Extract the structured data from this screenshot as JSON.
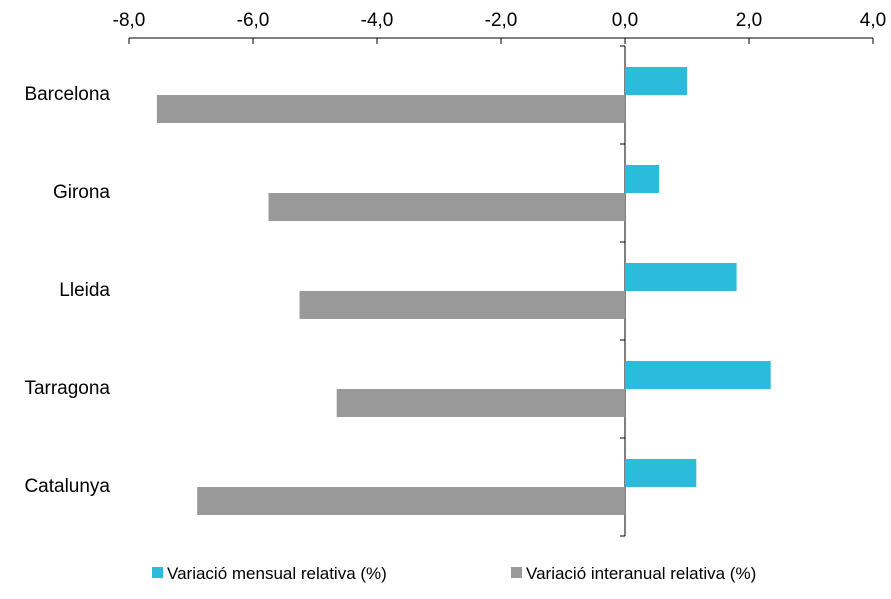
{
  "chart_data": {
    "type": "bar",
    "orientation": "horizontal",
    "categories": [
      "Barcelona",
      "Girona",
      "Lleida",
      "Tarragona",
      "Catalunya"
    ],
    "series": [
      {
        "name": "Variació mensual relativa (%)",
        "color": "#2BBCDC",
        "values": [
          1.0,
          0.55,
          1.8,
          2.35,
          1.15
        ]
      },
      {
        "name": "Variació interanual relativa (%)",
        "color": "#999999",
        "values": [
          -7.55,
          -5.75,
          -5.25,
          -4.65,
          -6.9
        ]
      }
    ],
    "x_tick_labels": [
      "-8,0",
      "-6,0",
      "-4,0",
      "-2,0",
      "0,0",
      "2,0",
      "4,0"
    ],
    "x_ticks": [
      -8,
      -6,
      -4,
      -2,
      0,
      2,
      4
    ],
    "xlim": [
      -8,
      4
    ],
    "x_axis_position": "top",
    "legend_position": "bottom",
    "grid": false,
    "title": "",
    "xlabel": "",
    "ylabel": ""
  }
}
